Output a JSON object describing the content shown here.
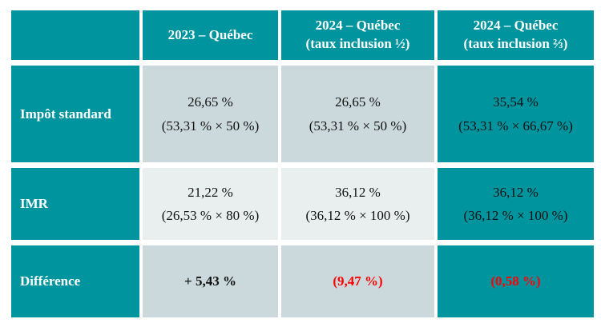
{
  "colors": {
    "teal": "#00949E",
    "band-dark": "#CBD9DC",
    "band-light": "#E9EEEF",
    "negative-red": "#FF0000",
    "text-dark": "#111111",
    "header-text": "#FFFFFF"
  },
  "table": {
    "header": {
      "col0": "",
      "col1": "2023 – Québec",
      "col2": "2024 – Québec\n(taux inclusion ½)",
      "col3": "2024 – Québec\n(taux inclusion ⅔)"
    },
    "rows": [
      {
        "label": "Impôt standard",
        "c1": "26,65 %\n(53,31 % × 50 %)",
        "c2": "26,65 %\n(53,31 % × 50 %)",
        "c3": "35,54 %\n(53,31 % × 66,67 %)"
      },
      {
        "label": "IMR",
        "c1": "21,22 %\n(26,53 % × 80 %)",
        "c2": "36,12 %\n(36,12 % × 100 %)",
        "c3": "36,12 %\n(36,12 % × 100 %)"
      },
      {
        "label": "Différence",
        "c1": "+ 5,43 %",
        "c2": "(9,47 %)",
        "c3": "(0,58 %)"
      }
    ]
  }
}
